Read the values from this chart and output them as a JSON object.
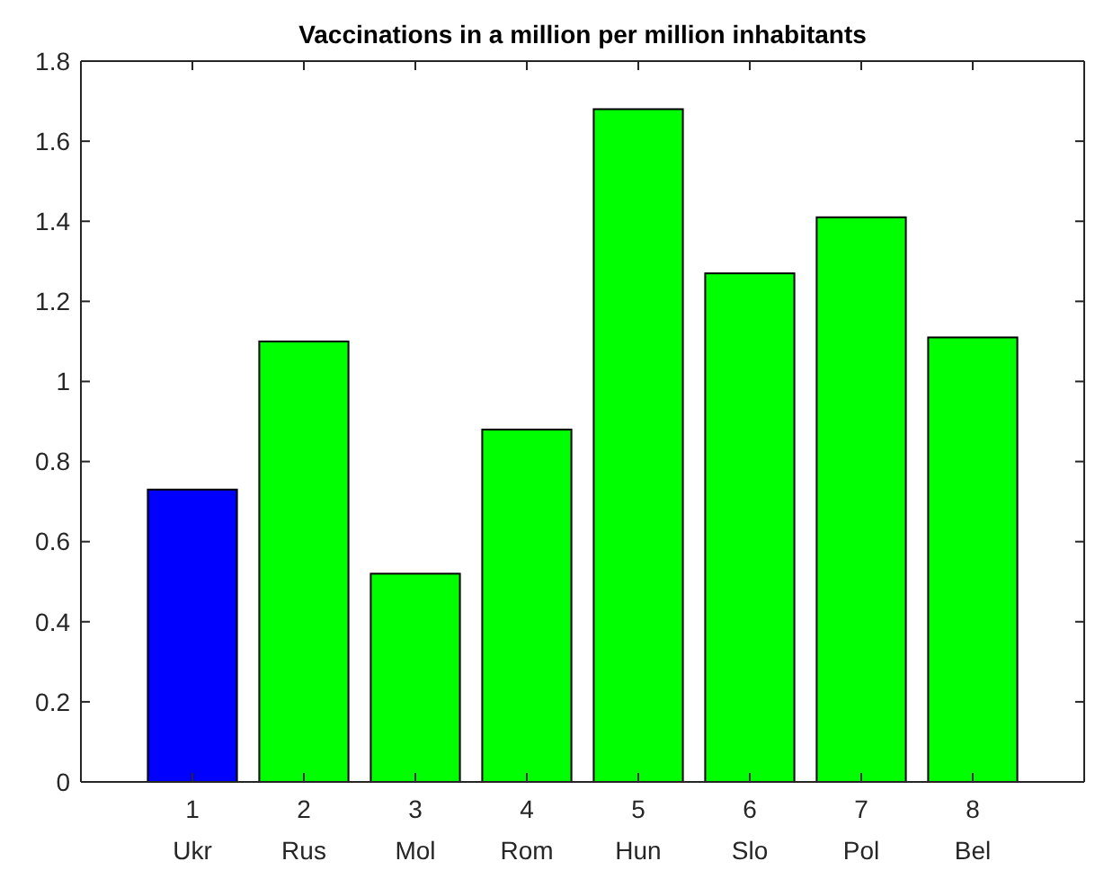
{
  "chart_data": {
    "type": "bar",
    "title": "Vaccinations in a million per million inhabitants",
    "x": [
      1,
      2,
      3,
      4,
      5,
      6,
      7,
      8
    ],
    "values": [
      0.73,
      1.1,
      0.52,
      0.88,
      1.68,
      1.27,
      1.41,
      1.11
    ],
    "colors": [
      "#0000ff",
      "#00ff00",
      "#00ff00",
      "#00ff00",
      "#00ff00",
      "#00ff00",
      "#00ff00",
      "#00ff00"
    ],
    "xlim": [
      0,
      9
    ],
    "xticks": [
      {
        "value": 1,
        "label": "1\nUkr"
      },
      {
        "value": 2,
        "label": "2\nRus"
      },
      {
        "value": 3,
        "label": "3\nMol"
      },
      {
        "value": 4,
        "label": "4\nRom"
      },
      {
        "value": 5,
        "label": "5\nHun"
      },
      {
        "value": 6,
        "label": "6\nSlo"
      },
      {
        "value": 7,
        "label": "7\nPol"
      },
      {
        "value": 8,
        "label": "8\nBel"
      }
    ],
    "ylim": [
      0,
      1.8
    ],
    "yticks": [
      0,
      0.2,
      0.4,
      0.6,
      0.8,
      1,
      1.2,
      1.4,
      1.6,
      1.8
    ],
    "grid": false
  }
}
